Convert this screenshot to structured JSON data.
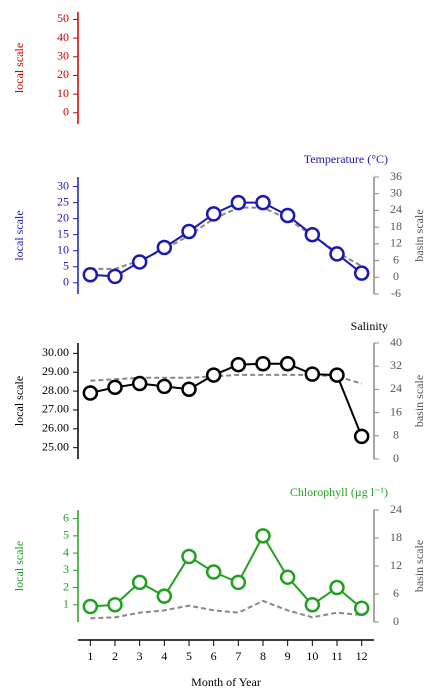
{
  "chart_data": [
    {
      "type": "line",
      "color": "#cc0000",
      "ylabel": "local scale",
      "ylim": [
        -6,
        54
      ],
      "yticks": [
        0,
        10,
        20,
        30,
        40,
        50
      ],
      "series": []
    },
    {
      "type": "line",
      "title": "Temperature (°C)",
      "color": "#1a1ab0",
      "ylabel": "local scale",
      "y2label": "basin scale",
      "ylim": [
        -3.5,
        33
      ],
      "yticks": [
        0,
        5,
        10,
        15,
        20,
        25,
        30
      ],
      "y2lim": [
        -6,
        36
      ],
      "y2ticks": [
        -6,
        0,
        6,
        12,
        18,
        24,
        30,
        36
      ],
      "series": [
        {
          "color": "#1a1ab0",
          "values": [
            2.5,
            2,
            6.5,
            11,
            16,
            21.5,
            25,
            25,
            21,
            15,
            9,
            3
          ]
        },
        {
          "color": "#888888",
          "axis": "y2",
          "linestyle": "dashed",
          "values": [
            3,
            3,
            6,
            10,
            15,
            21,
            25,
            25,
            21,
            15,
            9,
            4
          ]
        }
      ]
    },
    {
      "type": "line",
      "title": "Salinity",
      "color": "#000000",
      "ylabel": "local scale",
      "y2label": "basin scale",
      "ylim": [
        24.4,
        30.55
      ],
      "yticks": [
        {
          "value": 25,
          "label": "25.00"
        },
        {
          "value": 26,
          "label": "26.00"
        },
        {
          "value": 27,
          "label": "27.00"
        },
        {
          "value": 28,
          "label": "28.00"
        },
        {
          "value": 29,
          "label": "29.00"
        },
        {
          "value": 30,
          "label": "30.00"
        }
      ],
      "y2lim": [
        0,
        40
      ],
      "y2ticks": [
        0,
        8,
        16,
        24,
        32,
        40
      ],
      "series": [
        {
          "color": "#000000",
          "values": [
            27.9,
            28.2,
            28.4,
            28.25,
            28.1,
            28.85,
            29.4,
            29.45,
            29.45,
            28.9,
            28.85,
            25.6
          ]
        },
        {
          "color": "#888888",
          "axis": "y2",
          "linestyle": "dashed",
          "values": [
            27,
            27.5,
            28,
            28,
            28,
            28.5,
            29,
            29,
            29,
            29,
            28.5,
            26
          ]
        }
      ]
    },
    {
      "type": "line",
      "title": "Chlorophyll (µg l⁻¹)",
      "color": "#22a022",
      "ylabel": "local scale",
      "y2label": "basin scale",
      "xlabel": "Month of Year",
      "x": [
        1,
        2,
        3,
        4,
        5,
        6,
        7,
        8,
        9,
        10,
        11,
        12
      ],
      "xlim": [
        0.5,
        12.5
      ],
      "xticks": [
        1,
        2,
        3,
        4,
        5,
        6,
        7,
        8,
        9,
        10,
        11,
        12
      ],
      "ylim": [
        0,
        6.5
      ],
      "yticks": [
        1,
        2,
        3,
        4,
        5,
        6
      ],
      "y2lim": [
        0,
        24
      ],
      "y2ticks": [
        0,
        6,
        12,
        18,
        24
      ],
      "series": [
        {
          "color": "#22a022",
          "values": [
            0.9,
            1.0,
            2.3,
            1.5,
            3.8,
            2.9,
            2.3,
            5.0,
            2.6,
            1.0,
            2.0,
            0.8
          ]
        },
        {
          "color": "#888888",
          "axis": "y2",
          "linestyle": "dashed",
          "values": [
            0.8,
            1,
            2,
            2.5,
            3.5,
            2.5,
            2,
            4.5,
            2.5,
            1,
            2,
            1.5
          ]
        }
      ]
    }
  ]
}
